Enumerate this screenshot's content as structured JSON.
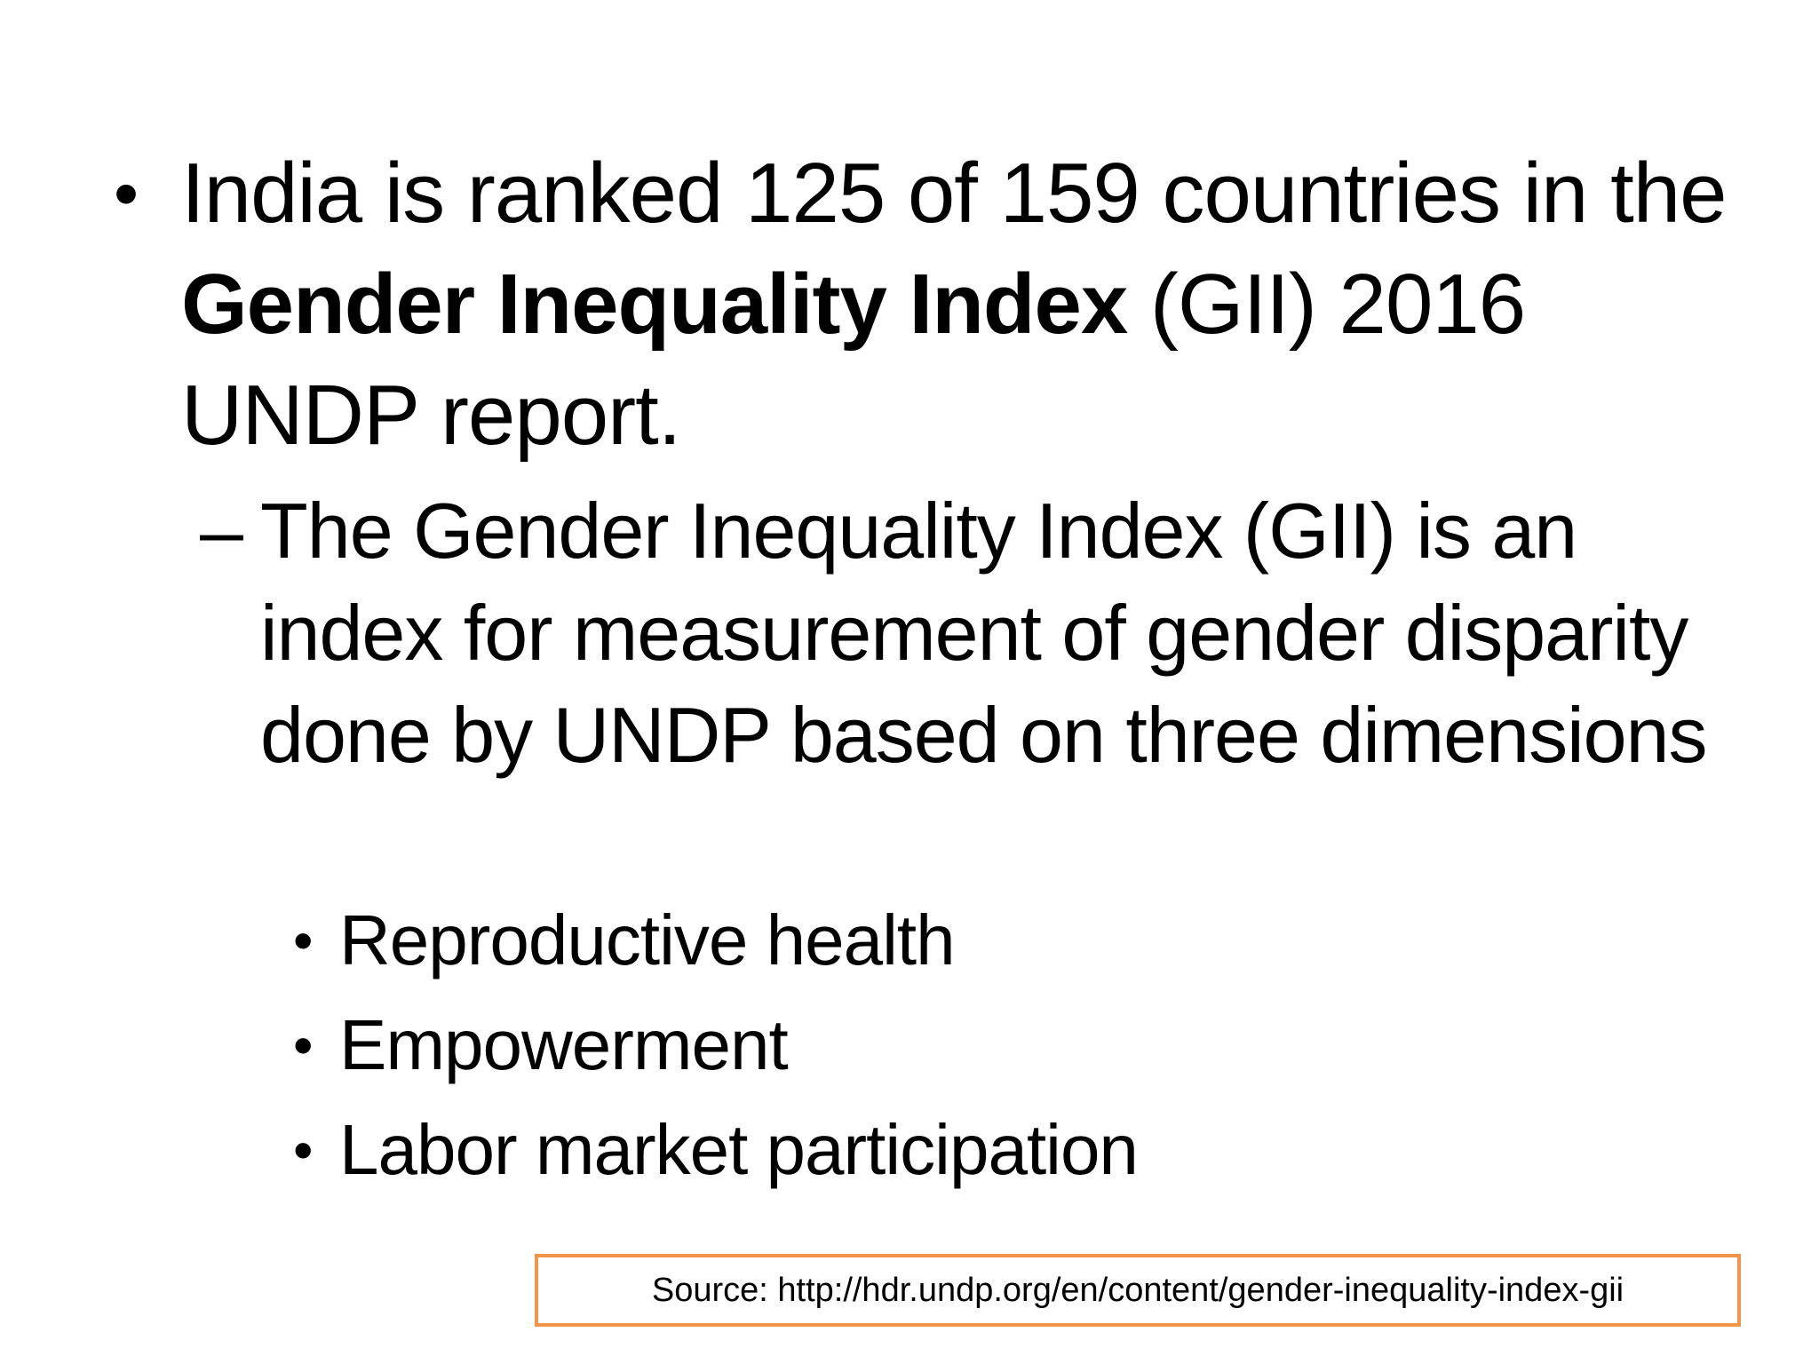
{
  "slide": {
    "bullet_1": {
      "marker": "•",
      "text_before": "India is ranked 125 of 159 countries in the ",
      "bold": "Gender Inequality Index",
      "text_after": " (GII) 2016 UNDP report."
    },
    "sub_bullet": {
      "marker": "–",
      "text": "The Gender Inequality Index (GII) is an index for measurement of gender disparity done by UNDP based on three dimensions"
    },
    "dimensions": [
      {
        "marker": "•",
        "label": "Reproductive health"
      },
      {
        "marker": "•",
        "label": "Empowerment"
      },
      {
        "marker": "•",
        "label": "Labor market participation"
      }
    ],
    "source": "Source: http://hdr.undp.org/en/content/gender-inequality-index-gii",
    "accent_color": "#f0954a"
  }
}
